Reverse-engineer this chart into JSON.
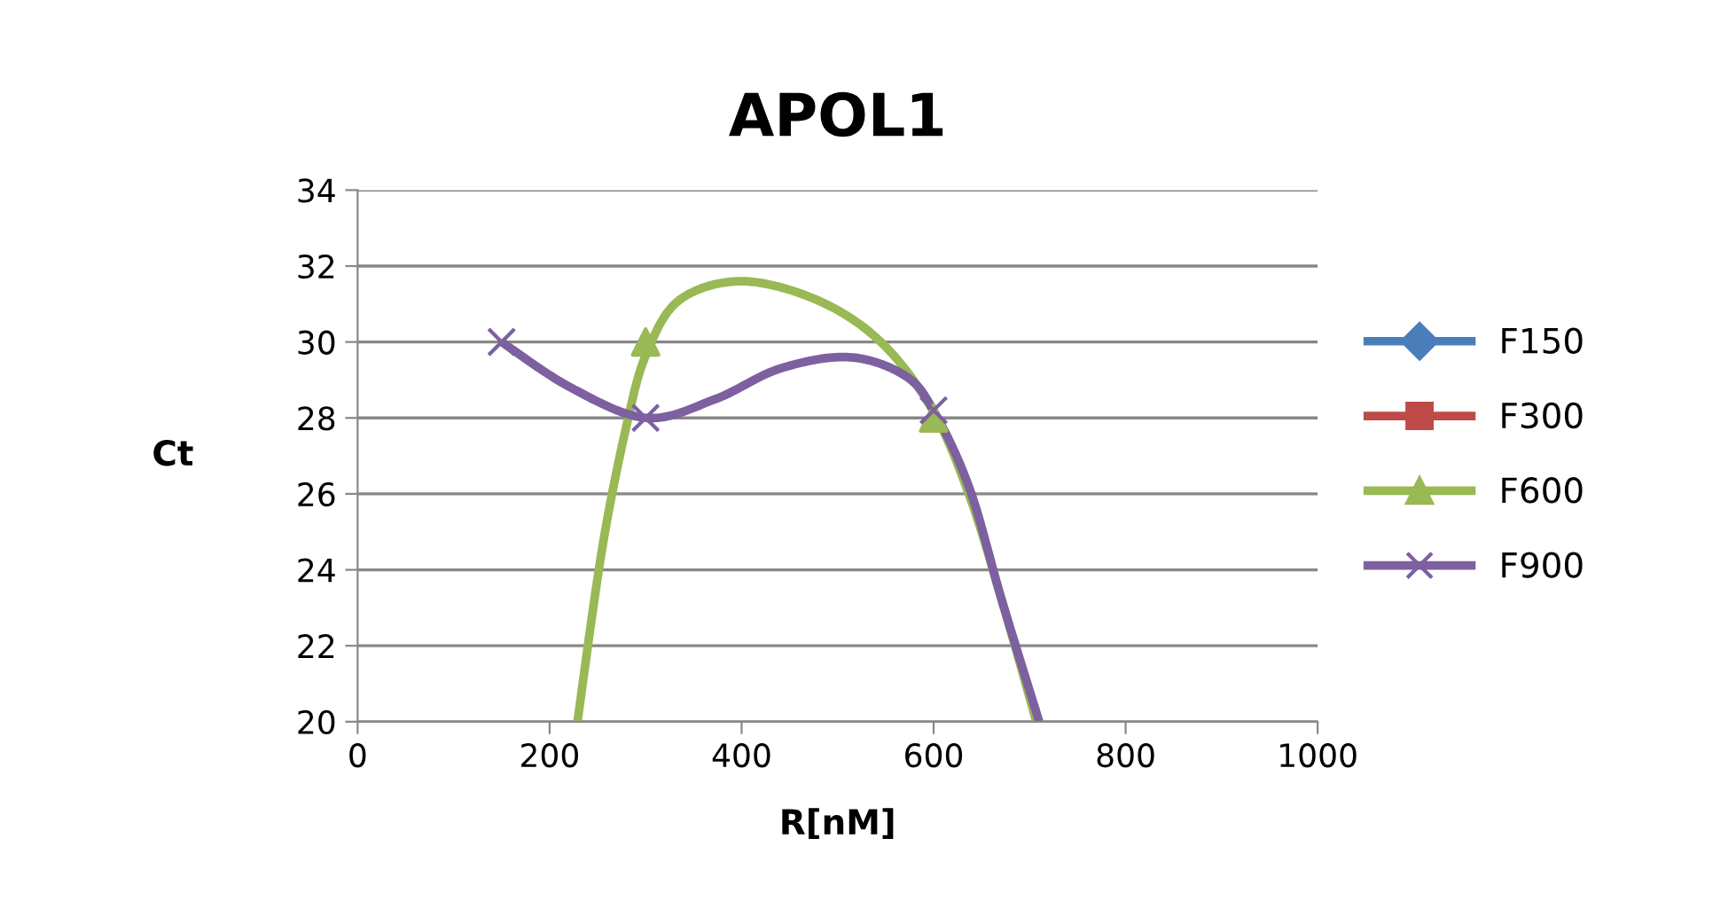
{
  "chart_data": {
    "type": "line",
    "title": "APOL1",
    "xlabel": "R[nM]",
    "ylabel": "Ct",
    "xlim": [
      0,
      1000
    ],
    "xticks": [
      0,
      200,
      400,
      600,
      800,
      1000
    ],
    "ylim": [
      20,
      34
    ],
    "yticks": [
      20,
      22,
      24,
      26,
      28,
      30,
      32,
      34
    ],
    "grid": "y",
    "legend": "right",
    "line_style": "solid",
    "series": [
      {
        "name": "F150",
        "type": "line",
        "color": "#4a7ebb",
        "marker": "diamond"
      },
      {
        "name": "F300",
        "type": "line",
        "color": "#be4b48",
        "marker": "square"
      },
      {
        "name": "F600",
        "type": "scatter",
        "color": "#98b954",
        "marker": "triangle",
        "x": [
          300,
          600
        ],
        "values": [
          30,
          28
        ]
      },
      {
        "name": "F900",
        "type": "scatter",
        "color": "#7d60a0",
        "marker": "cross",
        "x": [
          150,
          300,
          600
        ],
        "values": [
          30,
          28,
          28.2
        ]
      },
      {
        "color": "#98b954",
        "marker": "none",
        "x": [
          229,
          255,
          281,
          301,
          335,
          400,
          479,
          545,
          599,
          638,
          671,
          707
        ],
        "values": [
          20,
          24.6,
          27.9,
          29.7,
          31.1,
          31.6,
          31.1,
          30.0,
          28.2,
          25.9,
          23.2,
          20
        ]
      },
      {
        "color": "#7d60a0",
        "marker": "none",
        "x": [
          150,
          222,
          301,
          373,
          440,
          512,
          571,
          602,
          638,
          671,
          710
        ],
        "values": [
          30.0,
          28.8,
          28.0,
          28.5,
          29.3,
          29.6,
          29.1,
          28.1,
          26.1,
          23.2,
          20
        ]
      }
    ]
  }
}
